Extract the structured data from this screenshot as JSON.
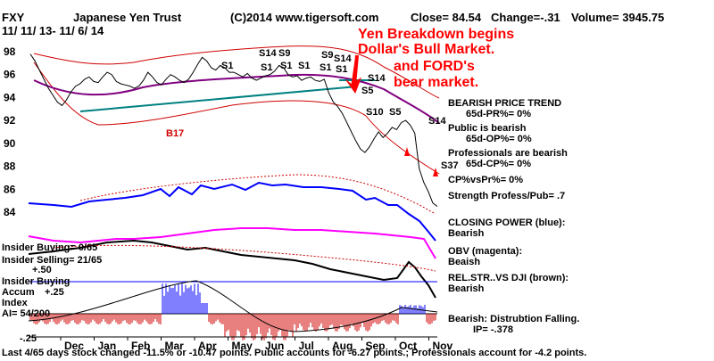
{
  "header": {
    "ticker": "FXY",
    "name": "Japanese Yen Trust",
    "copyright": "(C)2014 www.tigersoft.com",
    "close": "Close= 84.54",
    "change": "Change=-.31",
    "volume": "Volume= 3945.75",
    "date_range": "11/ 11/ 13- 11/ 6/ 14"
  },
  "annotation": {
    "line1": "Yen Breakdown begins",
    "line2": "Dollar's Bull Market.",
    "line3": "and FORD's",
    "line4": "bear market."
  },
  "side_panel": {
    "trend_title": "BEARISH PRICE TREND",
    "pr": "65d-PR%= 0%",
    "public": "Public is bearish",
    "op": "65d-OP%= 0%",
    "pros": "Professionals are bearish",
    "cp": "65d-CP%= 0%",
    "cpvspr": "CP%vsPr%= 0%",
    "strength": "Strength Profess/Pub= .7",
    "closing_title": "CLOSING POWER (blue):",
    "closing_val": "Bearish",
    "obv_title": "OBV (magenta):",
    "obv_val": "Beaish",
    "rel_title": "REL.STR..VS DJI (brown):",
    "rel_val": "Bearish",
    "dist_title": "Bearish: Distrubtion Falling.",
    "ip": "IP= -.378"
  },
  "left_labels": {
    "ins_buy": "Insider Buying= 0/65",
    "ins_sell": "Insider Selling= 21/65",
    "plus50": "+.50",
    "ins_buy2": "Insider Buying",
    "accum": "Accum",
    "plus25": "+.25",
    "index": "Index",
    "ai": "AI= 54/200",
    "minus25": "-.25"
  },
  "signals": {
    "s1": "S1",
    "s14": "S14",
    "s9": "S9",
    "s5": "S5",
    "s10": "S10",
    "s37": "S37",
    "b17": "B17"
  },
  "footer": "Last 4/65 days stock changed -11.5% or -10.47 points. Public accounts for -6.27 points.; Professionals account for -4.2 points.",
  "chart_data": {
    "type": "line",
    "title": "Japanese Yen Trust",
    "x_ticks": [
      "Dec",
      "Jan",
      "Feb",
      "Mar",
      "Apr",
      "May",
      "Jun",
      "Jul",
      "Aug",
      "Sep",
      "Oct",
      "Nov"
    ],
    "y_ticks": [
      84,
      86,
      88,
      90,
      92,
      94,
      96,
      98
    ],
    "ylim": [
      82.5,
      98.8
    ],
    "series": [
      {
        "color": "#000000",
        "values": [
          97.8,
          97.2,
          96.4,
          95.6,
          94.8,
          94.2,
          93.6,
          93.3,
          93.8,
          94.5,
          95.0,
          95.2,
          95.6,
          95.8,
          95.4,
          95.3,
          95.8,
          96.2,
          96.0,
          95.4,
          95.2,
          95.1,
          95.0,
          94.8,
          95.0,
          95.5,
          96.2,
          95.8,
          95.3,
          95.1,
          95.6,
          96.0,
          95.8,
          95.5,
          95.3,
          95.6,
          96.2,
          96.9,
          97.5,
          97.2,
          96.6,
          96.4,
          96.8,
          96.6,
          96.2,
          96.2,
          96.0,
          95.8,
          96.1,
          95.7,
          95.5,
          95.7,
          95.9,
          96.0,
          96.3,
          96.8,
          96.6,
          96.0,
          95.8,
          95.9,
          95.5,
          95.7,
          95.8,
          95.5,
          95.4,
          95.6,
          94.4,
          93.6,
          93.2,
          92.6,
          91.8,
          91.0,
          90.2,
          89.5,
          89.2,
          89.7,
          90.4,
          91.0,
          90.5,
          90.9,
          91.4,
          91.2,
          91.8,
          92.0,
          91.6,
          90.9,
          87.8,
          86.6,
          85.8,
          84.8,
          84.5
        ]
      }
    ]
  }
}
